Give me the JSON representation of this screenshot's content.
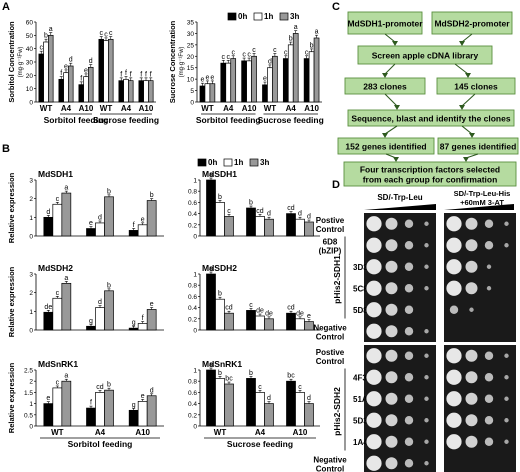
{
  "panel_labels": [
    "A",
    "B",
    "C",
    "D"
  ],
  "legend": {
    "items": [
      "0h",
      "1h",
      "3h"
    ],
    "colors": [
      "#000000",
      "#ffffff",
      "#999999"
    ]
  },
  "colors": {
    "bar_black": "#000000",
    "bar_white": "#ffffff",
    "bar_gray": "#999999",
    "flow_fill": "#b5dba0",
    "flow_border": "#5a8f3e",
    "arrow": "#2e5a1f",
    "colony": "#f2f2f2",
    "plate": "#1a1a1a"
  },
  "chart_data": [
    {
      "panel": "A",
      "type": "bar",
      "ylabel": "Sorbitol Concentration",
      "ylabel_unit": "(mg·g⁻¹Fw)",
      "ylim": [
        0,
        60
      ],
      "yticks": [
        0,
        10,
        20,
        30,
        40,
        50,
        60
      ],
      "groups": [
        {
          "label": "WT",
          "values": [
            36,
            45,
            50
          ],
          "letters": [
            "c",
            "b",
            "a"
          ]
        },
        {
          "label": "A4",
          "values": [
            17,
            22,
            27
          ],
          "letters": [
            "f",
            "e",
            "d"
          ]
        },
        {
          "label": "A10",
          "values": [
            13,
            19,
            26
          ],
          "letters": [
            "f",
            "e",
            "d"
          ]
        },
        {
          "label": "WT",
          "values": [
            47,
            46,
            47
          ],
          "letters": [
            "c",
            "c",
            "c"
          ]
        },
        {
          "label": "A4",
          "values": [
            16,
            17,
            16
          ],
          "letters": [
            "f",
            "f",
            "f"
          ]
        },
        {
          "label": "A10",
          "values": [
            16,
            16,
            16
          ],
          "letters": [
            "f",
            "f",
            "f"
          ]
        }
      ],
      "feeding_labels": [
        {
          "text": "Sorbitol feeding",
          "groups": [
            1,
            2
          ]
        },
        {
          "text": "Sucrose feeding",
          "groups": [
            3,
            5
          ]
        }
      ]
    },
    {
      "panel": "A",
      "type": "bar",
      "ylabel": "Sucrose Concentration",
      "ylabel_unit": "(mg·g⁻¹Fw)",
      "ylim": [
        0,
        35
      ],
      "yticks": [
        0,
        5,
        10,
        15,
        20,
        25,
        30,
        35
      ],
      "groups": [
        {
          "label": "WT",
          "values": [
            7,
            8,
            8
          ],
          "letters": [
            "e",
            "e",
            "e"
          ]
        },
        {
          "label": "A4",
          "values": [
            17,
            17,
            19
          ],
          "letters": [
            "c",
            "c",
            "c"
          ]
        },
        {
          "label": "A10",
          "values": [
            18,
            18,
            20
          ],
          "letters": [
            "c",
            "c",
            "c"
          ]
        },
        {
          "label": "WT",
          "values": [
            7.5,
            15,
            20
          ],
          "letters": [
            "e",
            "d",
            "c"
          ]
        },
        {
          "label": "A4",
          "values": [
            19,
            25,
            30
          ],
          "letters": [
            "c",
            "b",
            "a"
          ]
        },
        {
          "label": "A10",
          "values": [
            19,
            22,
            28
          ],
          "letters": [
            "c",
            "b",
            "a"
          ]
        }
      ],
      "feeding_labels": [
        {
          "text": "Sorbitol feeding",
          "groups": [
            0,
            2
          ]
        },
        {
          "text": "Sucrose feeding",
          "groups": [
            3,
            5
          ]
        }
      ]
    },
    {
      "panel": "B",
      "type": "bar",
      "title": "MdSDH1",
      "ylabel": "Relative expression",
      "ylim": [
        0,
        3
      ],
      "yticks": [
        0,
        1,
        2,
        3
      ],
      "groups": [
        {
          "values": [
            1.0,
            1.7,
            2.3
          ],
          "letters": [
            "d",
            "c",
            "a"
          ]
        },
        {
          "values": [
            0.4,
            0.7,
            2.1
          ],
          "letters": [
            "e",
            "d",
            "b"
          ]
        },
        {
          "values": [
            0.3,
            0.6,
            1.9
          ],
          "letters": [
            "f",
            "e",
            "b"
          ]
        }
      ]
    },
    {
      "panel": "B",
      "type": "bar",
      "title": "MdSDH1",
      "ylabel": "",
      "ylim": [
        0,
        1.0
      ],
      "yticks": [
        0,
        0.2,
        0.4,
        0.6,
        0.8,
        1.0
      ],
      "groups": [
        {
          "values": [
            1.0,
            0.6,
            0.35
          ],
          "letters": [
            "a",
            "b",
            "c"
          ]
        },
        {
          "values": [
            0.5,
            0.35,
            0.3
          ],
          "letters": [
            "b",
            "cd",
            "d"
          ]
        },
        {
          "values": [
            0.4,
            0.3,
            0.25
          ],
          "letters": [
            "cd",
            "d",
            "d"
          ]
        }
      ]
    },
    {
      "panel": "B",
      "type": "bar",
      "title": "MdSDH2",
      "ylabel": "Relative expression",
      "ylim": [
        0,
        3
      ],
      "yticks": [
        0,
        1,
        2,
        3
      ],
      "groups": [
        {
          "values": [
            0.95,
            1.7,
            2.5
          ],
          "letters": [
            "de",
            "c",
            "a"
          ]
        },
        {
          "values": [
            0.2,
            1.2,
            2.1
          ],
          "letters": [
            "g",
            "d",
            "b"
          ]
        },
        {
          "values": [
            0.1,
            0.35,
            1.1
          ],
          "letters": [
            "g",
            "f",
            "e"
          ]
        }
      ]
    },
    {
      "panel": "B",
      "type": "bar",
      "title": "MdSDH2",
      "ylabel": "",
      "ylim": [
        0,
        1.0
      ],
      "yticks": [
        0,
        0.2,
        0.4,
        0.6,
        0.8,
        1.0
      ],
      "groups": [
        {
          "values": [
            1.0,
            0.55,
            0.3
          ],
          "letters": [
            "a",
            "b",
            "cd"
          ]
        },
        {
          "values": [
            0.35,
            0.25,
            0.2
          ],
          "letters": [
            "c",
            "de",
            "de"
          ]
        },
        {
          "values": [
            0.3,
            0.2,
            0.15
          ],
          "letters": [
            "cd",
            "de",
            "e"
          ]
        }
      ]
    },
    {
      "panel": "B",
      "type": "bar",
      "title": "MdSnRK1",
      "ylabel": "Relative expression",
      "ylim": [
        0,
        2.5
      ],
      "yticks": [
        0,
        0.5,
        1.0,
        1.5,
        2.0,
        2.5
      ],
      "groups": [
        {
          "label": "WT",
          "values": [
            1.0,
            1.7,
            2.0
          ],
          "letters": [
            "e",
            "c",
            "a"
          ]
        },
        {
          "label": "A4",
          "values": [
            0.8,
            1.5,
            1.6
          ],
          "letters": [
            "f",
            "cd",
            "b"
          ]
        },
        {
          "label": "A10",
          "values": [
            0.7,
            1.1,
            1.35
          ],
          "letters": [
            "g",
            "e",
            "d"
          ]
        }
      ],
      "xlabel": "Sorbitol feeding"
    },
    {
      "panel": "B",
      "type": "bar",
      "title": "MdSnRK1",
      "ylabel": "",
      "ylim": [
        0,
        1.0
      ],
      "yticks": [
        0,
        0.2,
        0.4,
        0.6,
        0.8,
        1.0
      ],
      "groups": [
        {
          "label": "WT",
          "values": [
            1.0,
            0.85,
            0.75
          ],
          "letters": [
            "a",
            "b",
            "bc"
          ]
        },
        {
          "label": "A4",
          "values": [
            0.85,
            0.6,
            0.4
          ],
          "letters": [
            "b",
            "c",
            "d"
          ]
        },
        {
          "label": "A10",
          "values": [
            0.8,
            0.6,
            0.4
          ],
          "letters": [
            "bc",
            "c",
            "d"
          ]
        }
      ],
      "xlabel": "Sucrose feeding"
    }
  ],
  "flowchart": {
    "top_left": "MdSDH1-promoter",
    "top_right": "MdSDH2-promoter",
    "screen": "Screen apple cDNA library",
    "clones_left": "283 clones",
    "clones_right": "145 clones",
    "sequence": "Sequence, blast and identify the clones",
    "genes_left": "152 genes identified",
    "genes_right": "87 genes identified",
    "final_line1": "Four transcription factors selected",
    "final_line2": "from each group for confirmation"
  },
  "y1h": {
    "col_left": "SD/-Trp-Leu",
    "col_right_line1": "SD/-Trp-Leu-His",
    "col_right_line2": "+60mM 3-AT",
    "groups": [
      {
        "vector": "pHis2-SDH1",
        "rows": [
          {
            "label": "Postive Control",
            "left": [
              4,
              3,
              2,
              1
            ],
            "right": [
              4,
              3,
              2,
              1
            ]
          },
          {
            "label": "6D8 (bZIP)",
            "left": [
              4,
              3,
              2,
              1
            ],
            "right": [
              4,
              3,
              2,
              1
            ]
          },
          {
            "label": "3D3",
            "left": [
              4,
              3,
              2,
              1
            ],
            "right": [
              4,
              3,
              1,
              0
            ]
          },
          {
            "label": "5C8",
            "left": [
              4,
              3,
              2,
              1
            ],
            "right": [
              4,
              3,
              1,
              0
            ]
          },
          {
            "label": "5D8",
            "left": [
              4,
              3,
              2,
              0
            ],
            "right": [
              2,
              1,
              0,
              0
            ]
          },
          {
            "label": "Negative Control",
            "left": [
              4,
              3,
              2,
              1
            ],
            "right": [
              0,
              0,
              0,
              0
            ]
          }
        ]
      },
      {
        "vector": "pHis2-SDH2",
        "rows": [
          {
            "label": "Postive Control",
            "left": [
              4,
              3,
              2,
              1
            ],
            "right": [
              4,
              3,
              2,
              1
            ]
          },
          {
            "label": "4F3",
            "left": [
              4,
              3,
              2,
              1
            ],
            "right": [
              4,
              3,
              2,
              1
            ]
          },
          {
            "label": "51A1",
            "left": [
              4,
              3,
              2,
              1
            ],
            "right": [
              4,
              3,
              2,
              1
            ]
          },
          {
            "label": "5D3",
            "left": [
              4,
              3,
              2,
              1
            ],
            "right": [
              4,
              3,
              2,
              1
            ]
          },
          {
            "label": "1A4",
            "left": [
              4,
              3,
              2,
              1
            ],
            "right": [
              4,
              3,
              2,
              1
            ]
          },
          {
            "label": "Negative Control",
            "left": [
              4,
              3,
              2,
              1
            ],
            "right": [
              0,
              0,
              0,
              0
            ]
          }
        ]
      }
    ]
  }
}
